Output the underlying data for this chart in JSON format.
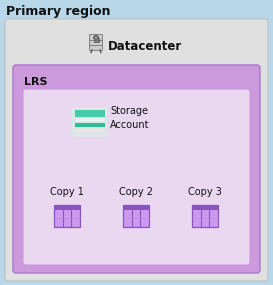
{
  "title": "Primary region",
  "datacenter_label": "Datacenter",
  "lrs_label": "LRS",
  "storage_label": "Storage\nAccount",
  "copies": [
    "Copy 1",
    "Copy 2",
    "Copy 3"
  ],
  "bg_color": "#b8d8ea",
  "outer_box_facecolor": "#e0e0e0",
  "outer_box_edgecolor": "#c0c0c0",
  "lrs_box_facecolor": "#cc99dd",
  "lrs_box_edgecolor": "#aa77cc",
  "inner_box_facecolor": "#ead8f0",
  "inner_box_edgecolor": "#cc99dd",
  "title_fontsize": 9,
  "datacenter_fontsize": 8.5,
  "lrs_fontsize": 8,
  "copy_fontsize": 7,
  "storage_fontsize": 7,
  "copy_icon_dark": "#8855bb",
  "copy_icon_light": "#cc99ee",
  "copy_icon_mid": "#bb88dd",
  "storage_teal1": "#44ccaa",
  "storage_teal2": "#33bb99",
  "storage_white": "#f0f0f0",
  "storage_light": "#e8e8e8",
  "storage_bg": "#dce8e8"
}
